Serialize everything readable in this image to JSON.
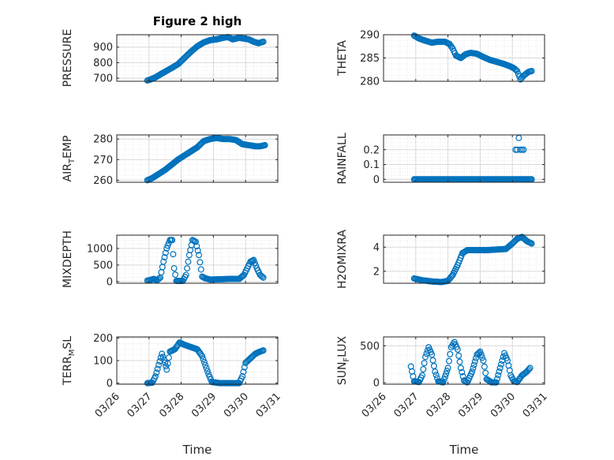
{
  "figure_title": "Figure 2 high",
  "x_tick_labels": [
    "03/26",
    "03/27",
    "03/28",
    "03/29",
    "03/30",
    "03/31"
  ],
  "x_label": "Time",
  "colors": {
    "marker": "#0072BD",
    "grid": "#d9d9d9",
    "axis": "#262626"
  },
  "chart_data": [
    {
      "type": "scatter",
      "id": "pressure",
      "ylabel": "PRESSURE",
      "ylabel_sub": null,
      "title": "Figure 2 high",
      "ylim": [
        680,
        980
      ],
      "yticks": [
        700,
        800,
        900
      ],
      "ytick_labels": [
        "700",
        "800",
        "900"
      ],
      "xlim": [
        0,
        5
      ],
      "xticks": [
        0,
        1,
        2,
        3,
        4,
        5
      ],
      "show_xticklabels": false,
      "grid": true,
      "minor_grid": true,
      "anchors": [
        [
          0.95,
          685
        ],
        [
          1.05,
          692
        ],
        [
          1.2,
          705
        ],
        [
          1.4,
          730
        ],
        [
          1.7,
          765
        ],
        [
          1.9,
          790
        ],
        [
          2.1,
          830
        ],
        [
          2.3,
          870
        ],
        [
          2.5,
          905
        ],
        [
          2.7,
          930
        ],
        [
          2.9,
          945
        ],
        [
          3.1,
          950
        ],
        [
          3.3,
          960
        ],
        [
          3.45,
          965
        ],
        [
          3.6,
          950
        ],
        [
          3.8,
          960
        ],
        [
          3.95,
          955
        ],
        [
          4.1,
          950
        ],
        [
          4.25,
          935
        ],
        [
          4.4,
          925
        ],
        [
          4.55,
          935
        ]
      ],
      "extra_points": []
    },
    {
      "type": "scatter",
      "id": "theta",
      "ylabel": "THETA",
      "ylabel_sub": null,
      "ylim": [
        280,
        290
      ],
      "yticks": [
        280,
        285,
        290
      ],
      "ytick_labels": [
        "280",
        "285",
        "290"
      ],
      "xlim": [
        0,
        5
      ],
      "xticks": [
        0,
        1,
        2,
        3,
        4,
        5
      ],
      "show_xticklabels": false,
      "grid": true,
      "minor_grid": true,
      "anchors": [
        [
          0.95,
          289.8
        ],
        [
          1.1,
          289.2
        ],
        [
          1.3,
          288.7
        ],
        [
          1.5,
          288.3
        ],
        [
          1.7,
          288.5
        ],
        [
          1.9,
          288.5
        ],
        [
          2.05,
          288.0
        ],
        [
          2.15,
          287.0
        ],
        [
          2.25,
          285.5
        ],
        [
          2.4,
          285.0
        ],
        [
          2.55,
          285.8
        ],
        [
          2.7,
          286.1
        ],
        [
          2.9,
          285.9
        ],
        [
          3.1,
          285.2
        ],
        [
          3.3,
          284.6
        ],
        [
          3.5,
          284.2
        ],
        [
          3.7,
          283.8
        ],
        [
          3.9,
          283.3
        ],
        [
          4.05,
          282.8
        ],
        [
          4.15,
          282.2
        ],
        [
          4.25,
          280.4
        ],
        [
          4.35,
          281.2
        ],
        [
          4.5,
          282.0
        ],
        [
          4.6,
          282.2
        ]
      ],
      "extra_points": []
    },
    {
      "type": "scatter",
      "id": "air_temp",
      "ylabel": "AIR",
      "ylabel_sub": "T",
      "ylabel_rest": "EMP",
      "ylim": [
        259,
        282
      ],
      "yticks": [
        260,
        270,
        280
      ],
      "ytick_labels": [
        "260",
        "270",
        "280"
      ],
      "xlim": [
        0,
        5
      ],
      "xticks": [
        0,
        1,
        2,
        3,
        4,
        5
      ],
      "show_xticklabels": false,
      "grid": true,
      "minor_grid": true,
      "anchors": [
        [
          0.95,
          260.0
        ],
        [
          1.1,
          261.0
        ],
        [
          1.3,
          263.0
        ],
        [
          1.5,
          265.0
        ],
        [
          1.7,
          267.5
        ],
        [
          1.9,
          270.0
        ],
        [
          2.1,
          272.0
        ],
        [
          2.3,
          274.0
        ],
        [
          2.5,
          276.0
        ],
        [
          2.7,
          279.0
        ],
        [
          2.9,
          280.0
        ],
        [
          3.1,
          280.5
        ],
        [
          3.3,
          280.0
        ],
        [
          3.5,
          280.0
        ],
        [
          3.7,
          279.5
        ],
        [
          3.9,
          277.5
        ],
        [
          4.1,
          277.0
        ],
        [
          4.3,
          276.5
        ],
        [
          4.45,
          276.5
        ],
        [
          4.6,
          277.0
        ]
      ],
      "extra_points": []
    },
    {
      "type": "scatter",
      "id": "rainfall",
      "ylabel": "RAINFALL",
      "ylabel_sub": null,
      "ylim": [
        -0.02,
        0.3
      ],
      "yticks": [
        0,
        0.1,
        0.2
      ],
      "ytick_labels": [
        "0",
        "0.1",
        "0.2"
      ],
      "xlim": [
        0,
        5
      ],
      "xticks": [
        0,
        1,
        2,
        3,
        4,
        5
      ],
      "show_xticklabels": false,
      "grid": true,
      "minor_grid": true,
      "anchors": [
        [
          0.95,
          0
        ],
        [
          4.6,
          0
        ]
      ],
      "extra_points": [
        [
          4.1,
          0.2
        ],
        [
          4.15,
          0.2
        ],
        [
          4.2,
          0.28
        ],
        [
          4.25,
          0.2
        ],
        [
          4.3,
          0.2
        ],
        [
          4.35,
          0.2
        ]
      ]
    },
    {
      "type": "scatter",
      "id": "mixdepth",
      "ylabel": "MIXDEPTH",
      "ylabel_sub": null,
      "ylim": [
        -50,
        1400
      ],
      "yticks": [
        0,
        500,
        1000
      ],
      "ytick_labels": [
        "0",
        "500",
        "1000"
      ],
      "xlim": [
        0,
        5
      ],
      "xticks": [
        0,
        1,
        2,
        3,
        4,
        5
      ],
      "show_xticklabels": false,
      "grid": true,
      "minor_grid": true,
      "anchors": [
        [
          0.95,
          30
        ],
        [
          1.05,
          50
        ],
        [
          1.15,
          80
        ],
        [
          1.25,
          40
        ],
        [
          1.35,
          120
        ],
        [
          1.45,
          600
        ],
        [
          1.55,
          1000
        ],
        [
          1.65,
          1250
        ],
        [
          1.72,
          1250
        ],
        [
          1.78,
          400
        ],
        [
          1.85,
          20
        ],
        [
          2.05,
          20
        ],
        [
          2.15,
          200
        ],
        [
          2.25,
          800
        ],
        [
          2.35,
          1250
        ],
        [
          2.45,
          1200
        ],
        [
          2.55,
          800
        ],
        [
          2.65,
          150
        ],
        [
          2.75,
          100
        ],
        [
          2.9,
          60
        ],
        [
          3.2,
          70
        ],
        [
          3.5,
          80
        ],
        [
          3.8,
          80
        ],
        [
          3.95,
          200
        ],
        [
          4.05,
          400
        ],
        [
          4.15,
          600
        ],
        [
          4.25,
          650
        ],
        [
          4.35,
          400
        ],
        [
          4.45,
          200
        ],
        [
          4.55,
          120
        ]
      ],
      "extra_points": []
    },
    {
      "type": "scatter",
      "id": "h2omixra",
      "ylabel": "H2OMIXRA",
      "ylabel_sub": null,
      "ylim": [
        1,
        5
      ],
      "yticks": [
        2,
        4
      ],
      "ytick_labels": [
        "2",
        "4"
      ],
      "xlim": [
        0,
        5
      ],
      "xticks": [
        0,
        1,
        2,
        3,
        4,
        5
      ],
      "show_xticklabels": false,
      "grid": true,
      "minor_grid": true,
      "anchors": [
        [
          0.95,
          1.4
        ],
        [
          1.2,
          1.25
        ],
        [
          1.5,
          1.15
        ],
        [
          1.8,
          1.1
        ],
        [
          2.0,
          1.2
        ],
        [
          2.15,
          1.7
        ],
        [
          2.3,
          2.5
        ],
        [
          2.45,
          3.5
        ],
        [
          2.6,
          3.75
        ],
        [
          2.9,
          3.75
        ],
        [
          3.2,
          3.75
        ],
        [
          3.5,
          3.8
        ],
        [
          3.8,
          3.85
        ],
        [
          4.0,
          4.3
        ],
        [
          4.15,
          4.7
        ],
        [
          4.3,
          4.85
        ],
        [
          4.45,
          4.5
        ],
        [
          4.6,
          4.3
        ]
      ],
      "extra_points": []
    },
    {
      "type": "scatter",
      "id": "terr_msl",
      "ylabel": "TERR",
      "ylabel_sub": "M",
      "ylabel_rest": "SL",
      "ylim": [
        -5,
        205
      ],
      "yticks": [
        0,
        100,
        200
      ],
      "ytick_labels": [
        "0",
        "100",
        "200"
      ],
      "xlim": [
        0,
        5
      ],
      "xticks": [
        0,
        1,
        2,
        3,
        4,
        5
      ],
      "show_xticklabels": true,
      "grid": true,
      "minor_grid": true,
      "anchors": [
        [
          0.95,
          0
        ],
        [
          1.1,
          2
        ],
        [
          1.2,
          30
        ],
        [
          1.3,
          80
        ],
        [
          1.4,
          130
        ],
        [
          1.5,
          90
        ],
        [
          1.55,
          60
        ],
        [
          1.65,
          140
        ],
        [
          1.8,
          150
        ],
        [
          1.95,
          180
        ],
        [
          2.1,
          170
        ],
        [
          2.3,
          160
        ],
        [
          2.5,
          150
        ],
        [
          2.65,
          120
        ],
        [
          2.75,
          80
        ],
        [
          2.85,
          40
        ],
        [
          2.95,
          5
        ],
        [
          3.2,
          0
        ],
        [
          3.5,
          0
        ],
        [
          3.8,
          0
        ],
        [
          3.9,
          30
        ],
        [
          4.0,
          90
        ],
        [
          4.15,
          110
        ],
        [
          4.3,
          130
        ],
        [
          4.45,
          140
        ],
        [
          4.55,
          145
        ]
      ],
      "extra_points": []
    },
    {
      "type": "scatter",
      "id": "sun_flux",
      "ylabel": "SUN",
      "ylabel_sub": "F",
      "ylabel_rest": "LUX",
      "ylim": [
        -20,
        620
      ],
      "yticks": [
        0,
        500
      ],
      "ytick_labels": [
        "0",
        "500"
      ],
      "xlim": [
        0,
        5
      ],
      "xticks": [
        0,
        1,
        2,
        3,
        4,
        5
      ],
      "show_xticklabels": true,
      "grid": true,
      "minor_grid": true,
      "anchors": [
        [
          0.85,
          220
        ],
        [
          0.95,
          20
        ],
        [
          1.1,
          10
        ],
        [
          1.2,
          100
        ],
        [
          1.3,
          350
        ],
        [
          1.4,
          480
        ],
        [
          1.5,
          380
        ],
        [
          1.6,
          150
        ],
        [
          1.7,
          20
        ],
        [
          1.85,
          5
        ],
        [
          2.0,
          200
        ],
        [
          2.1,
          480
        ],
        [
          2.2,
          550
        ],
        [
          2.3,
          450
        ],
        [
          2.4,
          200
        ],
        [
          2.5,
          30
        ],
        [
          2.6,
          5
        ],
        [
          2.75,
          150
        ],
        [
          2.9,
          380
        ],
        [
          3.0,
          420
        ],
        [
          3.1,
          300
        ],
        [
          3.2,
          50
        ],
        [
          3.35,
          5
        ],
        [
          3.5,
          5
        ],
        [
          3.65,
          250
        ],
        [
          3.75,
          400
        ],
        [
          3.85,
          300
        ],
        [
          3.95,
          100
        ],
        [
          4.05,
          20
        ],
        [
          4.15,
          10
        ],
        [
          4.3,
          100
        ],
        [
          4.45,
          150
        ],
        [
          4.55,
          200
        ]
      ],
      "extra_points": []
    }
  ]
}
